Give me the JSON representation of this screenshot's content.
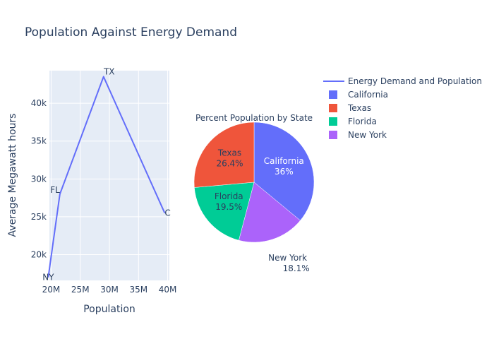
{
  "title": "Population Against Energy Demand",
  "colors": {
    "plot_bg": "#e5ecf6",
    "grid": "#ffffff",
    "text": "#2a3f5f",
    "line": "#636efa"
  },
  "chart_data": [
    {
      "type": "line",
      "xlabel": "Population",
      "ylabel": "Average Megawatt hours",
      "xlim": [
        19700000,
        40300000
      ],
      "ylim": [
        16600000,
        44300000
      ],
      "xticks": [
        20000000,
        25000000,
        30000000,
        35000000,
        40000000
      ],
      "xtick_labels": [
        "20M",
        "25M",
        "30M",
        "35M",
        "40M"
      ],
      "yticks": [
        20000,
        25000,
        30000,
        35000,
        40000
      ],
      "ytick_labels": [
        "20k",
        "25k",
        "30k",
        "35k",
        "40k"
      ],
      "grid": true,
      "series": [
        {
          "name": "Energy Demand and Population",
          "color": "#636efa",
          "points": [
            {
              "label": "NY",
              "x": 19500000,
              "y": 17000
            },
            {
              "label": "FL",
              "x": 21500000,
              "y": 28000
            },
            {
              "label": "TX",
              "x": 29000000,
              "y": 43500
            },
            {
              "label": "C",
              "x": 39500000,
              "y": 25500
            }
          ]
        }
      ]
    },
    {
      "type": "pie",
      "title": "Percent Population by State",
      "slices": [
        {
          "label": "California",
          "value": 36.0,
          "text": "36%",
          "color": "#636efa",
          "text_color": "#ffffff"
        },
        {
          "label": "New York",
          "value": 18.1,
          "text": "18.1%",
          "color": "#ab63fa",
          "text_color": "#2a3f5f"
        },
        {
          "label": "Florida",
          "value": 19.5,
          "text": "19.5%",
          "color": "#00cc96",
          "text_color": "#2a3f5f"
        },
        {
          "label": "Texas",
          "value": 26.4,
          "text": "26.4%",
          "color": "#ef553b",
          "text_color": "#2a3f5f"
        }
      ]
    }
  ],
  "legend": {
    "placement": "top-right",
    "items": [
      {
        "label": "Energy Demand and Population",
        "kind": "line",
        "color": "#636efa"
      },
      {
        "label": "California",
        "kind": "box",
        "color": "#636efa"
      },
      {
        "label": "Texas",
        "kind": "box",
        "color": "#ef553b"
      },
      {
        "label": "Florida",
        "kind": "box",
        "color": "#00cc96"
      },
      {
        "label": "New York",
        "kind": "box",
        "color": "#ab63fa"
      }
    ]
  }
}
